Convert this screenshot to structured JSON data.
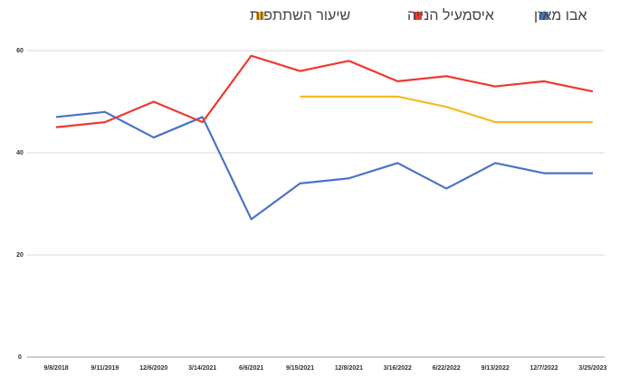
{
  "chart_data": {
    "type": "line",
    "categories": [
      "9/8/2018",
      "9/11/2019",
      "12/6/2020",
      "3/14/2021",
      "6/6/2021",
      "9/15/2021",
      "12/8/2021",
      "3/16/2022",
      "6/22/2022",
      "9/13/2022",
      "12/7/2022",
      "3/25/2023"
    ],
    "series": [
      {
        "name": "אבו מאזן",
        "color": "#4a72c9",
        "values": [
          47,
          48,
          43,
          47,
          27,
          34,
          35,
          38,
          33,
          38,
          36,
          36
        ]
      },
      {
        "name": "איסמעיל הנייה",
        "color": "#ee3a30",
        "values": [
          45,
          46,
          50,
          46,
          59,
          56,
          58,
          54,
          55,
          53,
          54,
          52
        ]
      },
      {
        "name": "שיעור השתתפות",
        "color": "#f9b824",
        "values": [
          null,
          null,
          null,
          null,
          null,
          51,
          51,
          51,
          49,
          46,
          46,
          46
        ]
      }
    ],
    "ylim": [
      0,
      60
    ],
    "yticks": [
      0,
      20,
      40,
      60
    ],
    "grid": true
  }
}
